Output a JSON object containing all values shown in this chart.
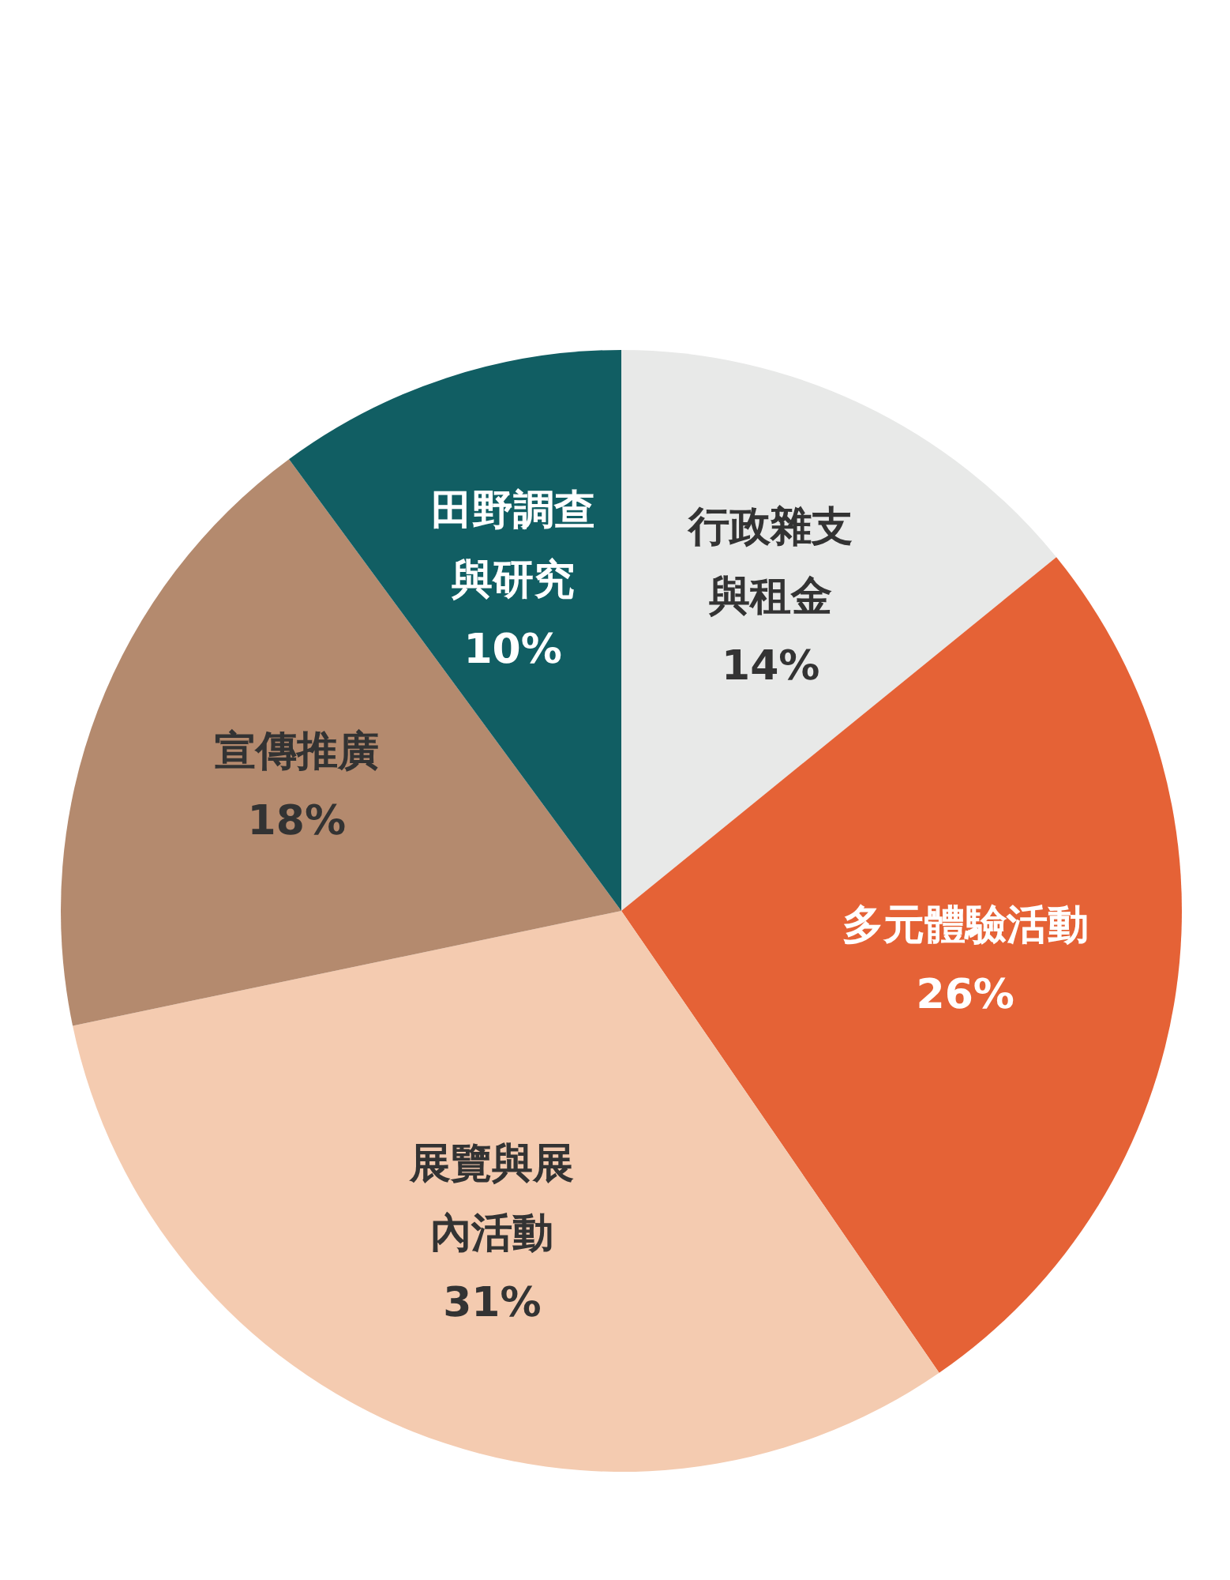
{
  "chart_data": {
    "type": "pie",
    "categories": [
      "行政雜支與租金",
      "多元體驗活動",
      "展覽與展內活動",
      "宣傳推廣",
      "田野調查與研究"
    ],
    "values": [
      14,
      26,
      31,
      18,
      10
    ],
    "colors": [
      "#e8e9e8",
      "#e56236",
      "#f4cbb0",
      "#b48a6e",
      "#115e63"
    ],
    "value_labels": [
      "14%",
      "26%",
      "31%",
      "18%",
      "10%"
    ]
  }
}
